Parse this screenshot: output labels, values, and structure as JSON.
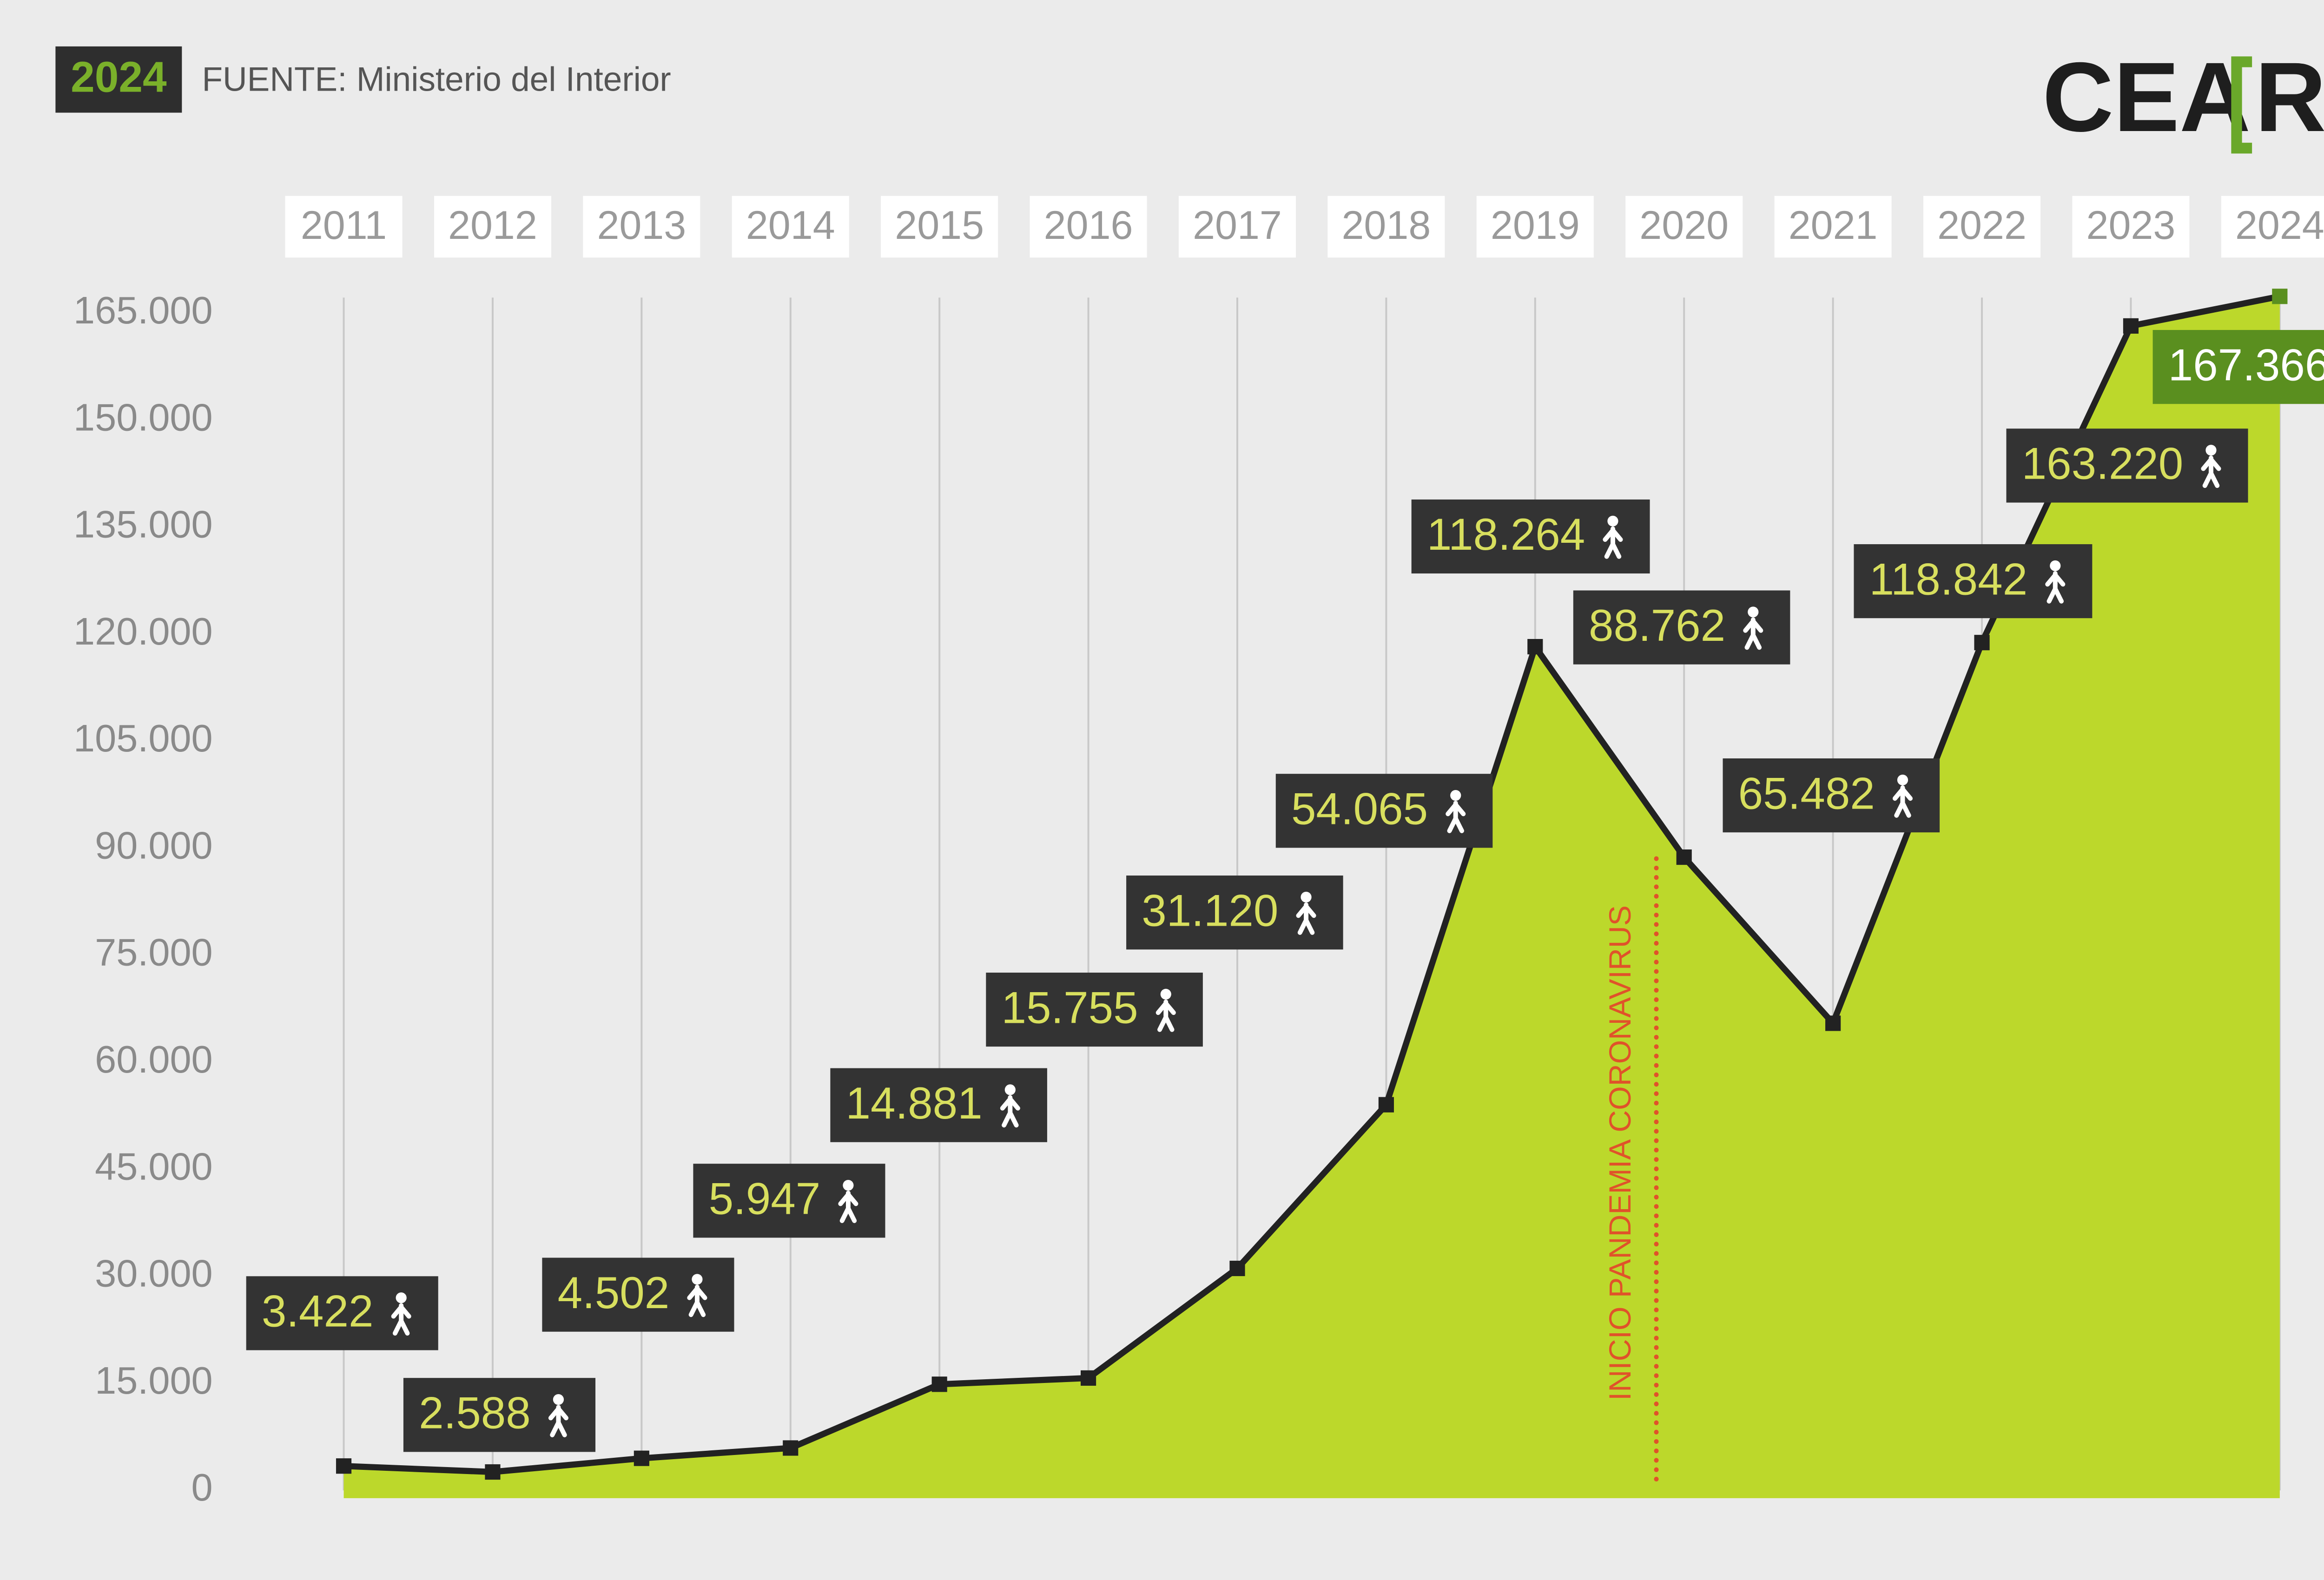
{
  "chart_data": {
    "type": "area",
    "badge": "2024",
    "source": "FUENTE: Ministerio del Interior",
    "logo": "CEA",
    "logo_letter": "R",
    "categories": [
      "2011",
      "2012",
      "2013",
      "2014",
      "2015",
      "2016",
      "2017",
      "2018",
      "2019",
      "2020",
      "2021",
      "2022",
      "2023",
      "2024"
    ],
    "values": [
      3422,
      2588,
      4502,
      5947,
      14881,
      15755,
      31120,
      54065,
      118264,
      88762,
      65482,
      118842,
      163220,
      167366
    ],
    "value_labels": [
      "3.422",
      "2.588",
      "4.502",
      "5.947",
      "14.881",
      "15.755",
      "31.120",
      "54.065",
      "118.264",
      "88.762",
      "65.482",
      "118.842",
      "163.220",
      "167.366"
    ],
    "color": "#bcd82b",
    "line_color": "#222222",
    "highlight_color": "#5a8f1f",
    "ylim": [
      0,
      170000
    ],
    "yticks": [
      0,
      {
        "value": 15000,
        "label": "15.000"
      },
      {
        "value": 30000,
        "label": "30.000"
      },
      {
        "value": 45000,
        "label": "45.000"
      },
      {
        "value": 60000,
        "label": "60.000"
      },
      {
        "value": 75000,
        "label": "75.000"
      },
      {
        "value": 90000,
        "label": "90.000"
      },
      {
        "value": 105000,
        "label": "105.000"
      },
      {
        "value": 120000,
        "label": "120.000"
      },
      {
        "value": 135000,
        "label": "135.000"
      },
      {
        "value": 150000,
        "label": "150.000"
      },
      {
        "value": 165000,
        "label": "165.000"
      }
    ],
    "x_grid": true,
    "annotation": "INICIO PANDEMIA CORONAVIRUS",
    "annotation_color": "#e0522a"
  }
}
